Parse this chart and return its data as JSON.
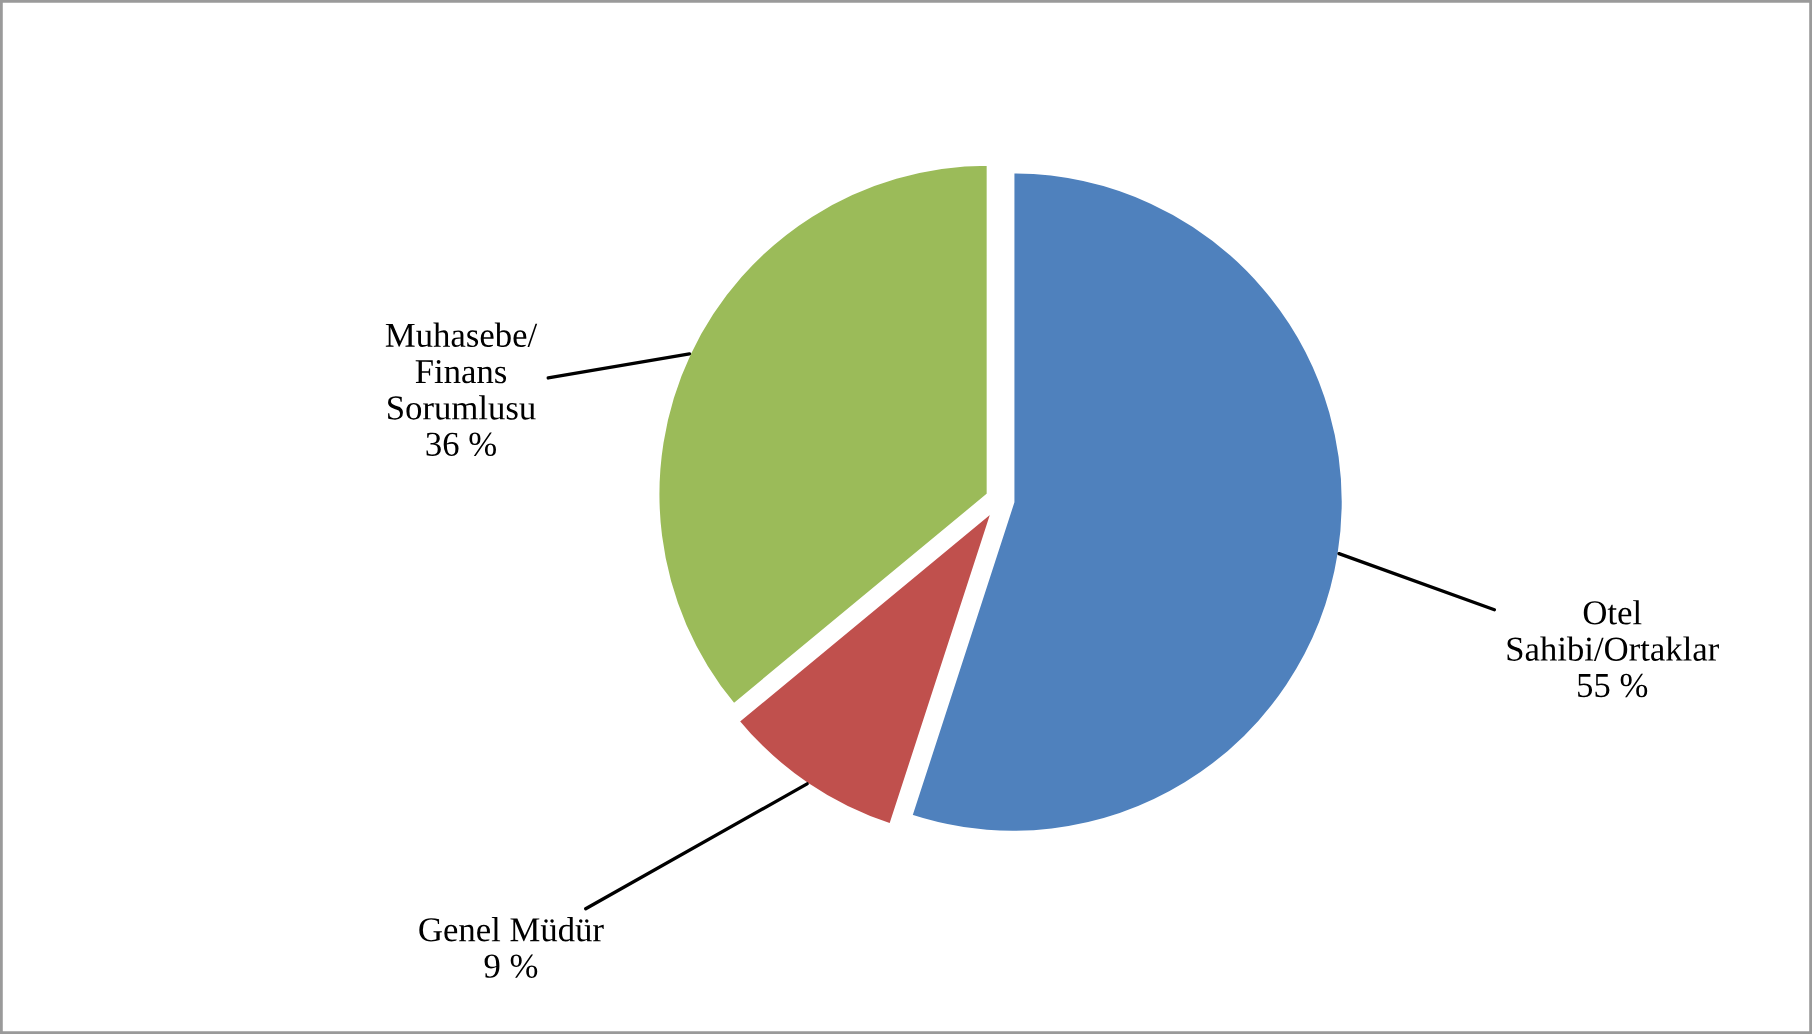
{
  "chart_data": {
    "type": "pie",
    "categories": [
      "Otel\nSahibi/Ortaklar",
      "Genel Müdür",
      "Muhasebe/\nFinans\nSorumlusu"
    ],
    "values": [
      55,
      9,
      36
    ],
    "value_labels": [
      "55 %",
      "9 %",
      "36 %"
    ],
    "colors": [
      "#4f81bd",
      "#c0504d",
      "#9bbb59"
    ]
  }
}
